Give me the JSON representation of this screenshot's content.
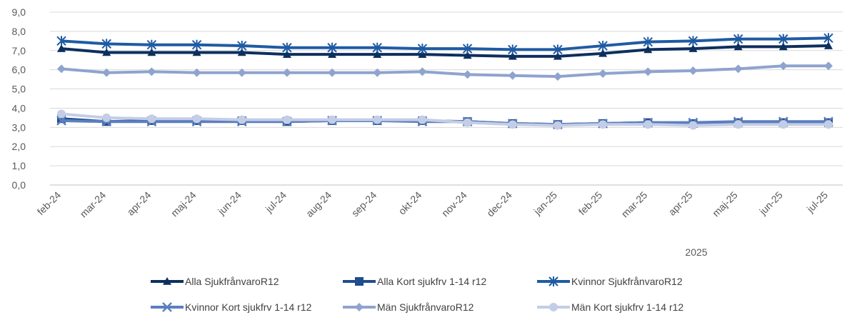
{
  "chart_data": {
    "type": "line",
    "categories": [
      "feb-24",
      "mar-24",
      "apr-24",
      "maj-24",
      "jun-24",
      "jul-24",
      "aug-24",
      "sep-24",
      "okt-24",
      "nov-24",
      "dec-24",
      "jan-25",
      "feb-25",
      "mar-25",
      "apr-25",
      "maj-25",
      "jun-25",
      "jul-25"
    ],
    "ylim": [
      0,
      9
    ],
    "yticks": [
      "0,0",
      "1,0",
      "2,0",
      "3,0",
      "4,0",
      "5,0",
      "6,0",
      "7,0",
      "8,0",
      "9,0"
    ],
    "grid": true,
    "legend_position": "bottom",
    "annotation": "2025",
    "series": [
      {
        "name": "Alla SjukfrånvaroR12",
        "color": "#0d2f5e",
        "marker": "triangle",
        "values": [
          7.1,
          6.9,
          6.9,
          6.9,
          6.9,
          6.8,
          6.8,
          6.8,
          6.8,
          6.75,
          6.7,
          6.7,
          6.85,
          7.05,
          7.1,
          7.2,
          7.2,
          7.25
        ]
      },
      {
        "name": "Alla Kort sjukfrv 1-14 r12",
        "color": "#1f4e8c",
        "marker": "square",
        "values": [
          3.45,
          3.3,
          3.35,
          3.35,
          3.35,
          3.3,
          3.35,
          3.35,
          3.35,
          3.3,
          3.2,
          3.15,
          3.2,
          3.25,
          3.2,
          3.25,
          3.25,
          3.25
        ]
      },
      {
        "name": "Kvinnor SjukfrånvaroR12",
        "color": "#1f5ba3",
        "marker": "asterisk",
        "values": [
          7.5,
          7.35,
          7.3,
          7.3,
          7.25,
          7.15,
          7.15,
          7.15,
          7.1,
          7.1,
          7.05,
          7.05,
          7.25,
          7.45,
          7.5,
          7.6,
          7.6,
          7.65
        ]
      },
      {
        "name": "Kvinnor Kort sjukfrv 1-14 r12",
        "color": "#5a7fc0",
        "marker": "x",
        "values": [
          3.35,
          3.3,
          3.3,
          3.3,
          3.3,
          3.3,
          3.35,
          3.35,
          3.3,
          3.3,
          3.2,
          3.15,
          3.2,
          3.25,
          3.25,
          3.3,
          3.3,
          3.3
        ]
      },
      {
        "name": "Män SjukfrånvaroR12",
        "color": "#8fa3cf",
        "marker": "diamond",
        "values": [
          6.05,
          5.85,
          5.9,
          5.85,
          5.85,
          5.85,
          5.85,
          5.85,
          5.9,
          5.75,
          5.7,
          5.65,
          5.8,
          5.9,
          5.95,
          6.05,
          6.2,
          6.2
        ]
      },
      {
        "name": "Män Kort sjukfrv 1-14 r12",
        "color": "#c4cde6",
        "marker": "circle",
        "values": [
          3.7,
          3.5,
          3.45,
          3.45,
          3.4,
          3.4,
          3.4,
          3.4,
          3.4,
          3.25,
          3.15,
          3.1,
          3.15,
          3.15,
          3.1,
          3.15,
          3.15,
          3.15
        ]
      }
    ]
  }
}
